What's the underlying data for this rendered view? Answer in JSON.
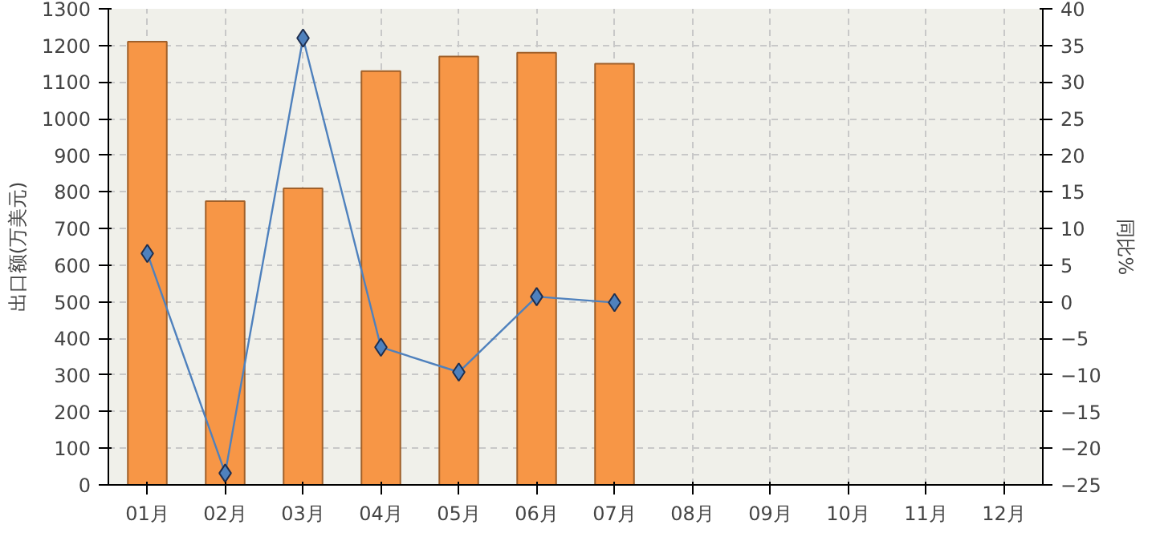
{
  "chart_data": {
    "type": "bar",
    "categories": [
      "01月",
      "02月",
      "03月",
      "04月",
      "05月",
      "06月",
      "07月",
      "08月",
      "09月",
      "10月",
      "11月",
      "12月"
    ],
    "ylabel": "出口额(万美元)",
    "y2label": "同比%",
    "ylim": [
      0,
      1300
    ],
    "yticks": [
      0,
      100,
      200,
      300,
      400,
      500,
      600,
      700,
      800,
      900,
      1000,
      1100,
      1200,
      1300
    ],
    "y2lim": [
      -25,
      40
    ],
    "y2ticks": [
      -25,
      -20,
      -15,
      -10,
      -5,
      0,
      5,
      10,
      15,
      20,
      25,
      30,
      35,
      40
    ],
    "grid": true,
    "marker": "diamond",
    "line_style": "solid",
    "series": [
      {
        "color": "#f79646",
        "values": [
          1210,
          775,
          810,
          1130,
          1170,
          1180,
          1150,
          null,
          null,
          null,
          null,
          null
        ]
      },
      {
        "type": "line",
        "axis": "y2",
        "color": "#4f81bd",
        "values": [
          6.6,
          -23.4,
          36,
          -6.2,
          -9.6,
          0.7,
          -0.1,
          null,
          null,
          null,
          null,
          null
        ]
      }
    ]
  }
}
